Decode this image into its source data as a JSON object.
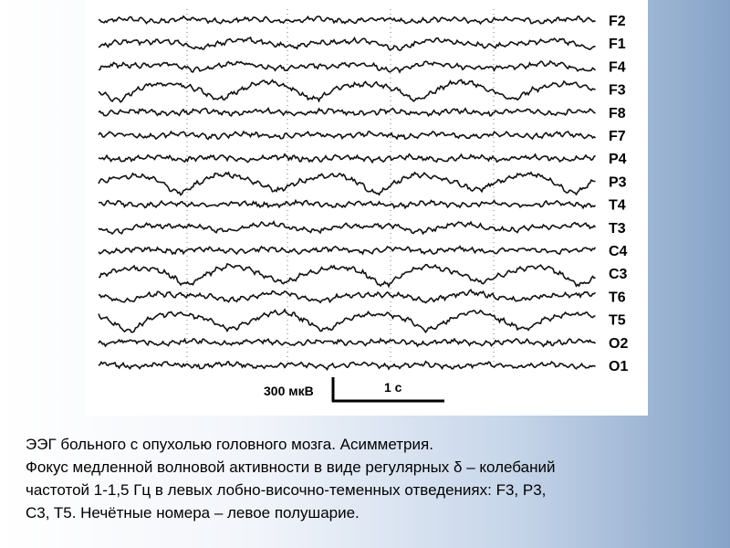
{
  "figure": {
    "channels": [
      "F2",
      "F1",
      "F4",
      "F3",
      "F8",
      "F7",
      "P4",
      "P3",
      "T4",
      "T3",
      "C4",
      "C3",
      "T6",
      "T5",
      "O2",
      "O1"
    ],
    "scale": {
      "amplitude_label": "300 мкВ",
      "time_label": "1 с"
    }
  },
  "caption": {
    "lines": [
      "ЭЭГ больного с опухолью головного мозга.  Асимметрия.",
      "Фокус медленной волновой активности в виде регулярных δ – колебаний",
      "частотой 1-1,5 Гц в левых лобно-височно-теменных отведениях: F3, P3,",
      "C3, T5.  Нечётные номера – левое полушарие."
    ]
  }
}
